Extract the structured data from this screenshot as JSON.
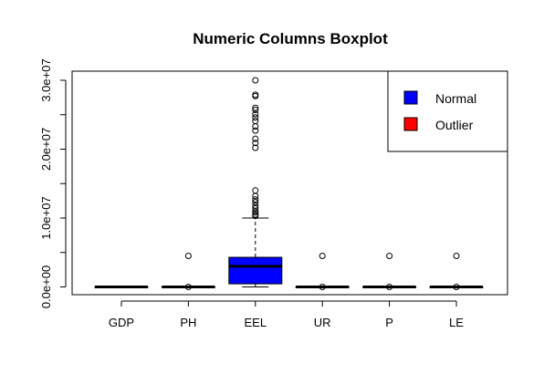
{
  "chart_data": {
    "type": "box",
    "title": "Numeric Columns Boxplot",
    "xlabel": "",
    "ylabel": "",
    "ylim": [
      -1200000,
      31800000
    ],
    "y_ticks": [
      0,
      5000000,
      10000000,
      15000000,
      20000000,
      25000000,
      30000000
    ],
    "y_tick_labels": [
      "0.0e+00",
      "",
      "1.0e+07",
      "",
      "2.0e+07",
      "",
      "3.0e+07"
    ],
    "categories": [
      "GDP",
      "PH",
      "EEL",
      "UR",
      "P",
      "LE"
    ],
    "boxes": [
      {
        "name": "GDP",
        "whisker_low": 0,
        "q1": 0,
        "median": 0,
        "q3": 0,
        "whisker_high": 0,
        "outliers": []
      },
      {
        "name": "PH",
        "whisker_low": 0,
        "q1": 0,
        "median": 0,
        "q3": 0,
        "whisker_high": 0,
        "outliers": [
          0,
          4500000
        ]
      },
      {
        "name": "EEL",
        "whisker_low": 0,
        "q1": 450000,
        "median": 3000000,
        "q3": 4300000,
        "whisker_high": 10000000,
        "outliers": [
          10300000,
          10500000,
          10800000,
          11000000,
          11400000,
          11800000,
          12300000,
          12700000,
          13200000,
          14000000,
          20200000,
          20900000,
          21500000,
          22700000,
          23300000,
          24100000,
          24600000,
          25100000,
          25700000,
          26000000,
          27700000,
          27900000,
          30000000
        ]
      },
      {
        "name": "UR",
        "whisker_low": 0,
        "q1": 0,
        "median": 0,
        "q3": 0,
        "whisker_high": 0,
        "outliers": [
          0,
          4500000
        ]
      },
      {
        "name": "P",
        "whisker_low": 0,
        "q1": 0,
        "median": 0,
        "q3": 0,
        "whisker_high": 0,
        "outliers": [
          0,
          4500000
        ]
      },
      {
        "name": "LE",
        "whisker_low": 0,
        "q1": 0,
        "median": 0,
        "q3": 0,
        "whisker_high": 0,
        "outliers": [
          0,
          4500000
        ]
      }
    ],
    "box_color": "#0000ff",
    "legend": {
      "position": "top-right",
      "entries": [
        {
          "label": "Normal",
          "color": "#0000ff"
        },
        {
          "label": "Outlier",
          "color": "#ff0000"
        }
      ]
    },
    "grid": false
  }
}
